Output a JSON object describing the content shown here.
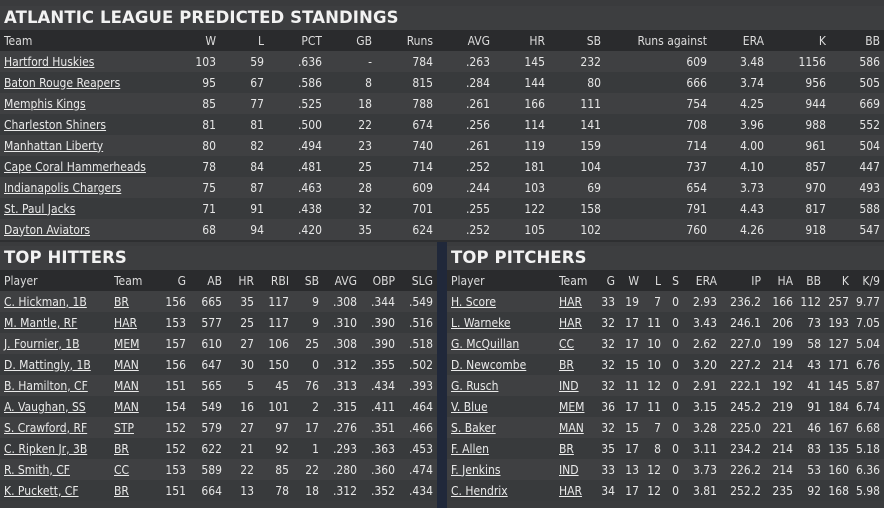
{
  "standings": {
    "title": "ATLANTIC LEAGUE PREDICTED STANDINGS",
    "headers": [
      "Team",
      "W",
      "L",
      "PCT",
      "GB",
      "Runs",
      "AVG",
      "HR",
      "SB",
      "Runs against",
      "ERA",
      "K",
      "BB"
    ],
    "rows": [
      [
        "Hartford Huskies",
        "103",
        "59",
        ".636",
        "-",
        "784",
        ".263",
        "145",
        "232",
        "609",
        "3.48",
        "1156",
        "586"
      ],
      [
        "Baton Rouge Reapers",
        "95",
        "67",
        ".586",
        "8",
        "815",
        ".284",
        "144",
        "80",
        "666",
        "3.74",
        "956",
        "505"
      ],
      [
        "Memphis Kings",
        "85",
        "77",
        ".525",
        "18",
        "788",
        ".261",
        "166",
        "111",
        "754",
        "4.25",
        "944",
        "669"
      ],
      [
        "Charleston Shiners",
        "81",
        "81",
        ".500",
        "22",
        "674",
        ".256",
        "114",
        "141",
        "708",
        "3.96",
        "988",
        "552"
      ],
      [
        "Manhattan Liberty",
        "80",
        "82",
        ".494",
        "23",
        "740",
        ".261",
        "119",
        "159",
        "714",
        "4.00",
        "961",
        "504"
      ],
      [
        "Cape Coral Hammerheads",
        "78",
        "84",
        ".481",
        "25",
        "714",
        ".252",
        "181",
        "104",
        "737",
        "4.10",
        "857",
        "447"
      ],
      [
        "Indianapolis Chargers",
        "75",
        "87",
        ".463",
        "28",
        "609",
        ".244",
        "103",
        "69",
        "654",
        "3.73",
        "970",
        "493"
      ],
      [
        "St. Paul Jacks",
        "71",
        "91",
        ".438",
        "32",
        "701",
        ".255",
        "122",
        "158",
        "791",
        "4.43",
        "817",
        "588"
      ],
      [
        "Dayton Aviators",
        "68",
        "94",
        ".420",
        "35",
        "624",
        ".252",
        "105",
        "102",
        "760",
        "4.26",
        "918",
        "547"
      ]
    ]
  },
  "hitters": {
    "title": "TOP HITTERS",
    "headers": [
      "Player",
      "Team",
      "G",
      "AB",
      "HR",
      "RBI",
      "SB",
      "AVG",
      "OBP",
      "SLG"
    ],
    "rows": [
      [
        "C. Hickman, 1B",
        "BR",
        "156",
        "665",
        "35",
        "117",
        "9",
        ".308",
        ".344",
        ".549"
      ],
      [
        "M. Mantle, RF",
        "HAR",
        "153",
        "577",
        "25",
        "117",
        "9",
        ".310",
        ".390",
        ".516"
      ],
      [
        "J. Fournier, 1B",
        "MEM",
        "157",
        "610",
        "27",
        "106",
        "25",
        ".308",
        ".390",
        ".518"
      ],
      [
        "D. Mattingly, 1B",
        "MAN",
        "156",
        "647",
        "30",
        "150",
        "0",
        ".312",
        ".355",
        ".502"
      ],
      [
        "B. Hamilton, CF",
        "MAN",
        "151",
        "565",
        "5",
        "45",
        "76",
        ".313",
        ".434",
        ".393"
      ],
      [
        "A. Vaughan, SS",
        "MAN",
        "154",
        "549",
        "16",
        "101",
        "2",
        ".315",
        ".411",
        ".464"
      ],
      [
        "S. Crawford, RF",
        "STP",
        "152",
        "579",
        "27",
        "97",
        "17",
        ".276",
        ".351",
        ".466"
      ],
      [
        "C. Ripken Jr, 3B",
        "BR",
        "152",
        "622",
        "21",
        "92",
        "1",
        ".293",
        ".363",
        ".453"
      ],
      [
        "R. Smith, CF",
        "CC",
        "153",
        "589",
        "22",
        "85",
        "22",
        ".280",
        ".360",
        ".474"
      ],
      [
        "K. Puckett, CF",
        "BR",
        "151",
        "664",
        "13",
        "78",
        "18",
        ".312",
        ".352",
        ".434"
      ]
    ]
  },
  "pitchers": {
    "title": "TOP PITCHERS",
    "headers": [
      "Player",
      "Team",
      "G",
      "W",
      "L",
      "S",
      "ERA",
      "IP",
      "HA",
      "BB",
      "K",
      "K/9"
    ],
    "rows": [
      [
        "H. Score",
        "HAR",
        "33",
        "19",
        "7",
        "0",
        "2.93",
        "236.2",
        "166",
        "112",
        "257",
        "9.77"
      ],
      [
        "L. Warneke",
        "HAR",
        "32",
        "17",
        "11",
        "0",
        "3.43",
        "246.1",
        "206",
        "73",
        "193",
        "7.05"
      ],
      [
        "G. McQuillan",
        "CC",
        "32",
        "17",
        "10",
        "0",
        "2.62",
        "227.0",
        "199",
        "58",
        "127",
        "5.04"
      ],
      [
        "D. Newcombe",
        "BR",
        "32",
        "15",
        "10",
        "0",
        "3.20",
        "227.2",
        "214",
        "43",
        "171",
        "6.76"
      ],
      [
        "G. Rusch",
        "IND",
        "32",
        "11",
        "12",
        "0",
        "2.91",
        "222.1",
        "192",
        "41",
        "145",
        "5.87"
      ],
      [
        "V. Blue",
        "MEM",
        "36",
        "17",
        "11",
        "0",
        "3.15",
        "245.2",
        "219",
        "91",
        "184",
        "6.74"
      ],
      [
        "S. Baker",
        "MAN",
        "32",
        "15",
        "7",
        "0",
        "3.28",
        "225.0",
        "221",
        "46",
        "167",
        "6.68"
      ],
      [
        "F. Allen",
        "BR",
        "35",
        "17",
        "8",
        "0",
        "3.11",
        "234.2",
        "214",
        "83",
        "135",
        "5.18"
      ],
      [
        "F. Jenkins",
        "IND",
        "33",
        "13",
        "12",
        "0",
        "3.73",
        "226.2",
        "214",
        "53",
        "160",
        "6.36"
      ],
      [
        "C. Hendrix",
        "HAR",
        "34",
        "17",
        "12",
        "0",
        "3.81",
        "252.2",
        "235",
        "92",
        "168",
        "5.98"
      ]
    ]
  }
}
